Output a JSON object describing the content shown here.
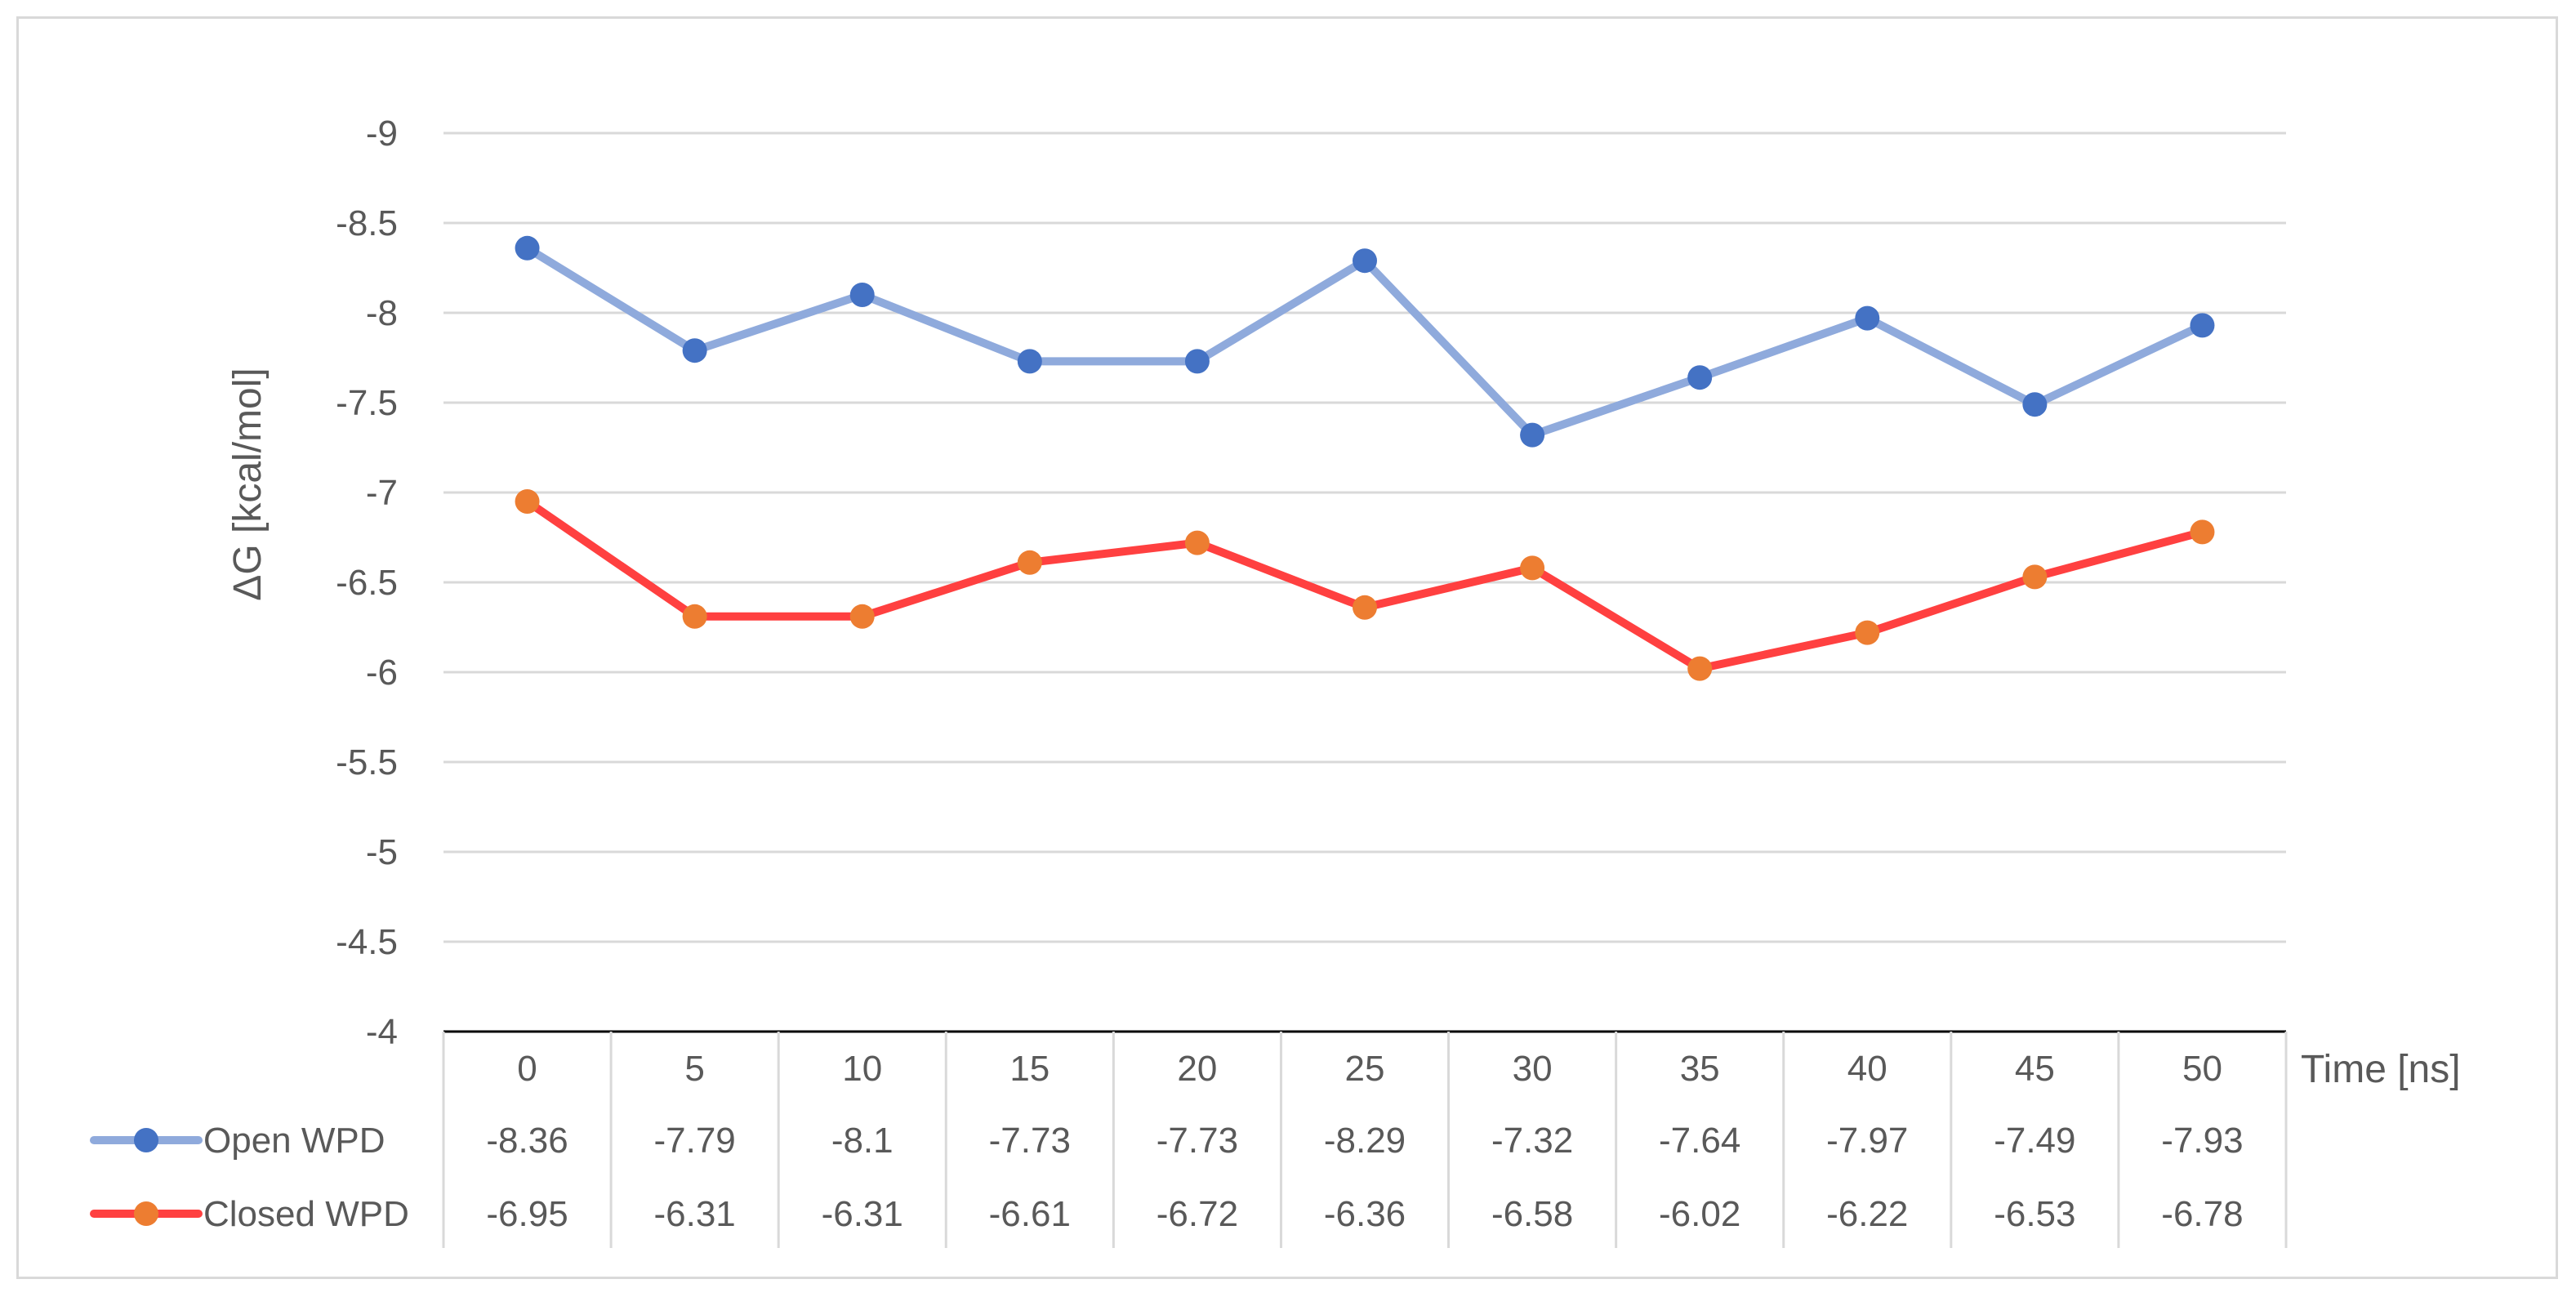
{
  "chart_data": {
    "type": "line",
    "title": "",
    "xlabel": "Time [ns]",
    "ylabel": "ΔG [kcal/mol]",
    "categories": [
      "0",
      "5",
      "10",
      "15",
      "20",
      "25",
      "30",
      "35",
      "40",
      "45",
      "50"
    ],
    "ylim": [
      -4,
      -9
    ],
    "y_axis_reversed": true,
    "y_ticks": [
      "-9",
      "-8.5",
      "-8",
      "-7.5",
      "-7",
      "-6.5",
      "-6",
      "-5.5",
      "-5",
      "-4.5",
      "-4"
    ],
    "grid": true,
    "legend": "data-table-left",
    "series": [
      {
        "name": "Open WPD",
        "values": [
          -8.36,
          -7.79,
          -8.1,
          -7.73,
          -7.73,
          -8.29,
          -7.32,
          -7.64,
          -7.97,
          -7.49,
          -7.93
        ],
        "value_labels": [
          "-8.36",
          "-7.79",
          "-8.1",
          "-7.73",
          "-7.73",
          "-8.29",
          "-7.32",
          "-7.64",
          "-7.97",
          "-7.49",
          "-7.93"
        ],
        "line_color": "#8faadc",
        "marker_color": "#4472c4"
      },
      {
        "name": "Closed WPD",
        "values": [
          -6.95,
          -6.31,
          -6.31,
          -6.61,
          -6.72,
          -6.36,
          -6.58,
          -6.02,
          -6.22,
          -6.53,
          -6.78
        ],
        "value_labels": [
          "-6.95",
          "-6.31",
          "-6.31",
          "-6.61",
          "-6.72",
          "-6.36",
          "-6.58",
          "-6.02",
          "-6.22",
          "-6.53",
          "-6.78"
        ],
        "line_color": "#ff4040",
        "marker_color": "#ed7d31"
      }
    ]
  }
}
